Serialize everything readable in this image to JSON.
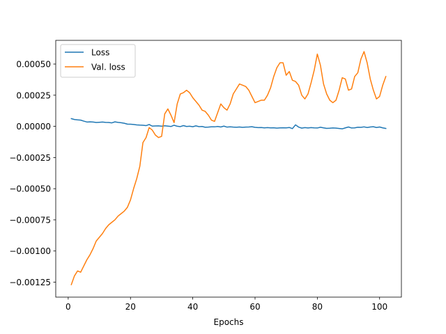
{
  "chart_data": {
    "type": "line",
    "title": "",
    "xlabel": "Epochs",
    "ylabel": "",
    "xlim": [
      -4,
      107
    ],
    "ylim": [
      -0.00137,
      0.00069
    ],
    "xticks": [
      0,
      20,
      40,
      60,
      80,
      100
    ],
    "xtick_labels": [
      "0",
      "20",
      "40",
      "60",
      "80",
      "100"
    ],
    "yticks": [
      -0.00125,
      -0.001,
      -0.00075,
      -0.0005,
      -0.00025,
      0,
      0.00025,
      0.0005
    ],
    "ytick_labels": [
      "−0.00125",
      "−0.00100",
      "−0.00075",
      "−0.00050",
      "−0.00025",
      "0.00000",
      "0.00025",
      "0.00050"
    ],
    "grid": false,
    "legend_position": "top-left",
    "series": [
      {
        "name": "Loss",
        "color": "#1f77b4",
        "x": [
          1,
          2,
          3,
          4,
          5,
          6,
          7,
          8,
          9,
          10,
          11,
          12,
          13,
          14,
          15,
          16,
          17,
          18,
          19,
          20,
          21,
          22,
          23,
          24,
          25,
          26,
          27,
          28,
          29,
          30,
          31,
          32,
          33,
          34,
          35,
          36,
          37,
          38,
          39,
          40,
          41,
          42,
          43,
          44,
          45,
          46,
          47,
          48,
          49,
          50,
          51,
          52,
          53,
          54,
          55,
          56,
          57,
          58,
          59,
          60,
          61,
          62,
          63,
          64,
          65,
          66,
          67,
          68,
          69,
          70,
          71,
          72,
          73,
          74,
          75,
          76,
          77,
          78,
          79,
          80,
          81,
          82,
          83,
          84,
          85,
          86,
          87,
          88,
          89,
          90,
          91,
          92,
          93,
          94,
          95,
          96,
          97,
          98,
          99,
          100,
          101,
          102
        ],
        "values": [
          6.2e-05,
          5.5e-05,
          5.2e-05,
          5e-05,
          4.2e-05,
          3.5e-05,
          3.6e-05,
          3.5e-05,
          3.1e-05,
          3.3e-05,
          3.5e-05,
          3.2e-05,
          3.1e-05,
          2.8e-05,
          3.6e-05,
          3.2e-05,
          2.9e-05,
          2.5e-05,
          1.8e-05,
          1.7e-05,
          1.5e-05,
          1.2e-05,
          1e-05,
          9e-06,
          6e-06,
          1.5e-05,
          2e-06,
          3e-06,
          4e-06,
          1e-06,
          5e-06,
          2e-06,
          -1e-06,
          9e-06,
          1e-06,
          -2e-06,
          6e-06,
          -1e-06,
          1e-06,
          -3e-06,
          4e-06,
          -2e-06,
          -1e-06,
          -7e-06,
          -6e-06,
          -4e-06,
          -4e-06,
          -1e-06,
          -5e-06,
          2e-06,
          -6e-06,
          -4e-06,
          -6e-06,
          -7e-06,
          -5e-06,
          -8e-06,
          -6e-06,
          -5e-06,
          -3e-06,
          -8e-06,
          -1e-05,
          -9e-06,
          -1.2e-05,
          -1e-05,
          -1.2e-05,
          -1.1e-05,
          -1.4e-05,
          -1.2e-05,
          -1.1e-05,
          -1.2e-05,
          -9e-06,
          -1.8e-05,
          1.2e-05,
          -6e-06,
          -1.4e-05,
          -1e-05,
          -1.3e-05,
          -1e-05,
          -1.2e-05,
          -1.3e-05,
          -7e-06,
          -1.2e-05,
          -1.6e-05,
          -1.5e-05,
          -1.3e-05,
          -1.4e-05,
          -1.7e-05,
          -2e-05,
          -1.2e-05,
          -5e-06,
          -1.3e-05,
          -1.2e-05,
          -7e-06,
          -8e-06,
          -4e-06,
          -9e-06,
          -5e-06,
          -3e-06,
          -9e-06,
          -5e-06,
          -1.2e-05,
          -1.7e-05
        ]
      },
      {
        "name": "Val. loss",
        "color": "#ff7f0e",
        "x": [
          1,
          2,
          3,
          4,
          5,
          6,
          7,
          8,
          9,
          10,
          11,
          12,
          13,
          14,
          15,
          16,
          17,
          18,
          19,
          20,
          21,
          22,
          23,
          24,
          25,
          26,
          27,
          28,
          29,
          30,
          31,
          32,
          33,
          34,
          35,
          36,
          37,
          38,
          39,
          40,
          41,
          42,
          43,
          44,
          45,
          46,
          47,
          48,
          49,
          50,
          51,
          52,
          53,
          54,
          55,
          56,
          57,
          58,
          59,
          60,
          61,
          62,
          63,
          64,
          65,
          66,
          67,
          68,
          69,
          70,
          71,
          72,
          73,
          74,
          75,
          76,
          77,
          78,
          79,
          80,
          81,
          82,
          83,
          84,
          85,
          86,
          87,
          88,
          89,
          90,
          91,
          92,
          93,
          94,
          95,
          96,
          97,
          98,
          99,
          100,
          101,
          102
        ],
        "values": [
          -0.00127,
          -0.0012,
          -0.00116,
          -0.00117,
          -0.00112,
          -0.00107,
          -0.00103,
          -0.00098,
          -0.00092,
          -0.00089,
          -0.00086,
          -0.00082,
          -0.00079,
          -0.00077,
          -0.00075,
          -0.00072,
          -0.0007,
          -0.00068,
          -0.00065,
          -0.00059,
          -0.0005,
          -0.00042,
          -0.00032,
          -0.00013,
          -9e-05,
          -1e-05,
          -3e-05,
          -7e-05,
          -9e-05,
          -8e-05,
          0.0001,
          0.00014,
          9e-05,
          3e-05,
          0.00018,
          0.00026,
          0.00027,
          0.00029,
          0.00027,
          0.00023,
          0.0002,
          0.00017,
          0.00013,
          0.00012,
          9e-05,
          5e-05,
          4e-05,
          0.00011,
          0.00018,
          0.00015,
          0.00013,
          0.00018,
          0.00026,
          0.0003,
          0.00034,
          0.00033,
          0.00032,
          0.00029,
          0.00024,
          0.00019,
          0.0002,
          0.00021,
          0.00021,
          0.00025,
          0.00031,
          0.0004,
          0.00047,
          0.00051,
          0.00051,
          0.00041,
          0.00044,
          0.00037,
          0.00036,
          0.00033,
          0.00025,
          0.00022,
          0.00026,
          0.00035,
          0.00045,
          0.00058,
          0.00049,
          0.00034,
          0.00026,
          0.00021,
          0.00019,
          0.00021,
          0.00029,
          0.00039,
          0.00038,
          0.00029,
          0.0003,
          0.0004,
          0.00043,
          0.00054,
          0.0006,
          0.00051,
          0.00038,
          0.00029,
          0.00022,
          0.00024,
          0.00033,
          0.0004
        ]
      }
    ]
  }
}
